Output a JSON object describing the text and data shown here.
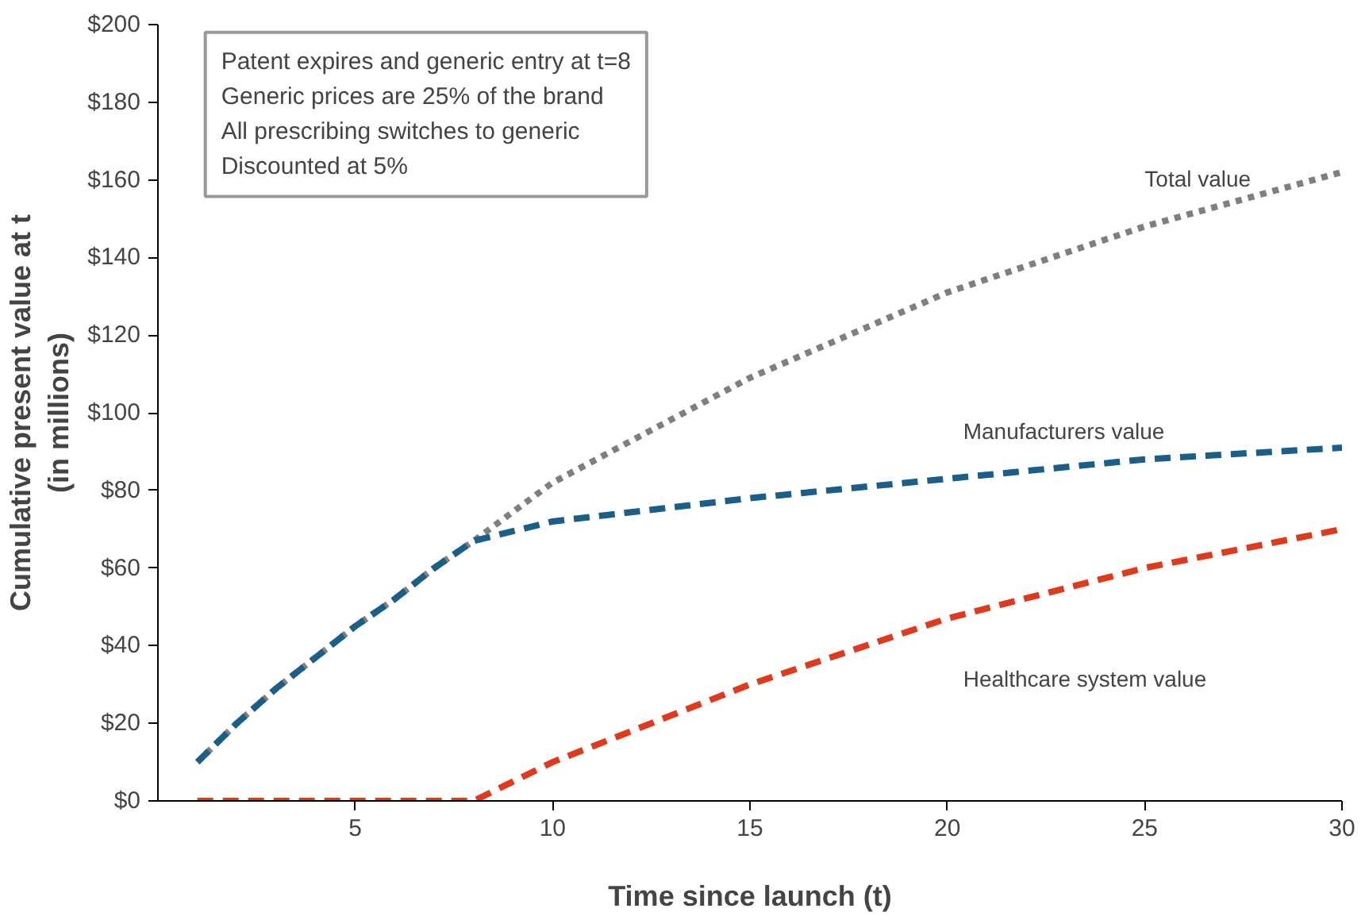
{
  "chart_data": {
    "type": "line",
    "xlabel": "Time since launch (t)",
    "ylabel": "Cumulative present value at t\n(in millions)",
    "xlim": [
      0,
      30
    ],
    "xticks": [
      5,
      10,
      15,
      20,
      25,
      30
    ],
    "ylim": [
      0,
      200
    ],
    "yticks": [
      {
        "value": 0,
        "label": "$0"
      },
      {
        "value": 20,
        "label": "$20"
      },
      {
        "value": 40,
        "label": "$40"
      },
      {
        "value": 60,
        "label": "$60"
      },
      {
        "value": 80,
        "label": "$80"
      },
      {
        "value": 100,
        "label": "$100"
      },
      {
        "value": 120,
        "label": "$120"
      },
      {
        "value": 140,
        "label": "$140"
      },
      {
        "value": 160,
        "label": "$160"
      },
      {
        "value": 180,
        "label": "$180"
      },
      {
        "value": 200,
        "label": "$200"
      }
    ],
    "grid": false,
    "series": [
      {
        "name": "Total value",
        "color": "#7f7f7f",
        "line_style": "dotted",
        "x": [
          1,
          2,
          3,
          4,
          5,
          6,
          7,
          8,
          10,
          15,
          20,
          25,
          30
        ],
        "values": [
          10,
          20,
          29,
          37,
          45,
          52,
          60,
          67,
          82,
          109,
          131,
          148,
          162
        ]
      },
      {
        "name": "Manufacturers value",
        "color": "#1b5e87",
        "line_style": "dashed",
        "x": [
          1,
          2,
          3,
          4,
          5,
          6,
          7,
          8,
          10,
          15,
          20,
          25,
          30
        ],
        "values": [
          10,
          20,
          29,
          37,
          45,
          52,
          60,
          67,
          72,
          78,
          83,
          88,
          91
        ]
      },
      {
        "name": "Healthcare system value",
        "color": "#e03a1e",
        "line_style": "dashed",
        "x": [
          1,
          2,
          3,
          4,
          5,
          6,
          7,
          8,
          10,
          15,
          20,
          25,
          30
        ],
        "values": [
          0,
          0,
          0,
          0,
          0,
          0,
          0,
          0,
          10,
          30,
          47,
          60,
          70
        ]
      }
    ],
    "annotations": [
      "Patent expires and generic entry at t=8",
      "Generic prices are 25% of the brand",
      "All prescribing switches to generic",
      "Discounted at 5%"
    ]
  }
}
